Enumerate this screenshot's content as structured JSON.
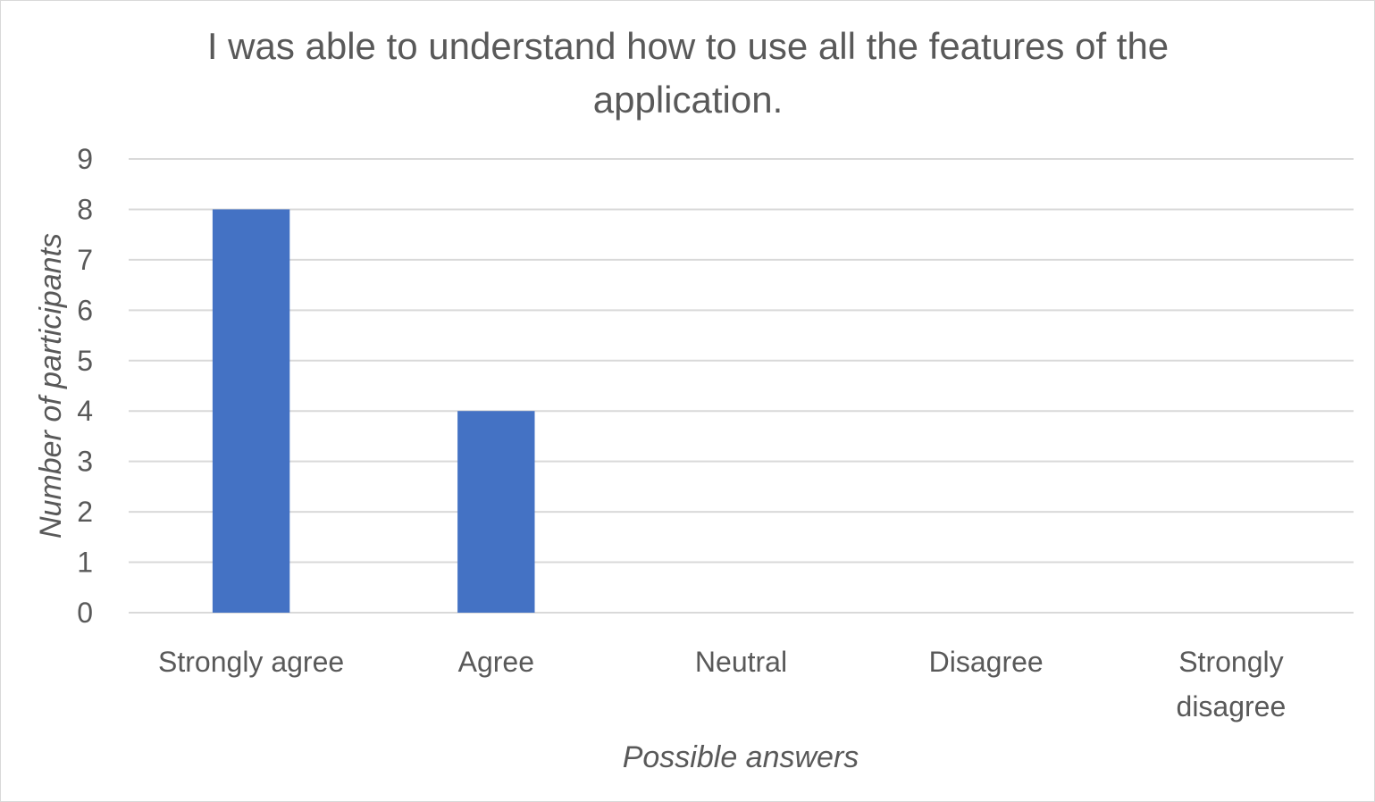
{
  "chart_data": {
    "type": "bar",
    "title": "I was able to understand how to use all the features of the application.",
    "xlabel": "Possible answers",
    "ylabel": "Number of participants",
    "categories": [
      "Strongly agree",
      "Agree",
      "Neutral",
      "Disagree",
      "Strongly disagree"
    ],
    "category_lines": [
      [
        "Strongly agree"
      ],
      [
        "Agree"
      ],
      [
        "Neutral"
      ],
      [
        "Disagree"
      ],
      [
        "Strongly",
        "disagree"
      ]
    ],
    "values": [
      8,
      4,
      0,
      0,
      0
    ],
    "ylim": [
      0,
      9
    ],
    "yticks": [
      0,
      1,
      2,
      3,
      4,
      5,
      6,
      7,
      8,
      9
    ],
    "grid": true,
    "legend": "none",
    "bar_color": "#4472c4",
    "grid_color": "#d9d9d9",
    "text_color": "#595959"
  }
}
